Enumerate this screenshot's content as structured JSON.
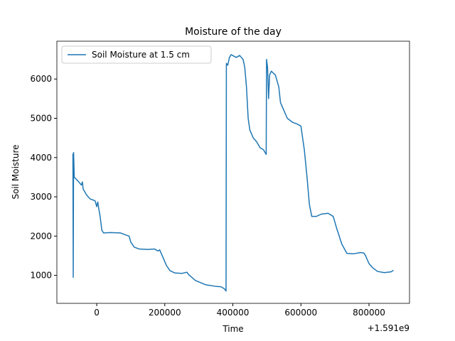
{
  "chart_data": {
    "type": "line",
    "title": "Moisture of the day",
    "x_label": "Time",
    "y_label": "Soil Moisture",
    "x_offset_label": "+1.591e9",
    "x": [
      -70000,
      -69000,
      -68000,
      -66000,
      -55000,
      -45000,
      -42000,
      -40000,
      -30000,
      -20000,
      -5000,
      0,
      3000,
      6000,
      10000,
      15000,
      20000,
      40000,
      70000,
      85000,
      95000,
      100000,
      110000,
      125000,
      150000,
      170000,
      180000,
      185000,
      195000,
      205000,
      215000,
      230000,
      250000,
      265000,
      270000,
      290000,
      320000,
      350000,
      365000,
      375000,
      380000,
      381000,
      385000,
      390000,
      395000,
      410000,
      420000,
      430000,
      435000,
      440000,
      445000,
      450000,
      460000,
      470000,
      480000,
      490000,
      498000,
      499000,
      502000,
      505000,
      508000,
      513000,
      525000,
      535000,
      540000,
      550000,
      560000,
      575000,
      590000,
      600000,
      610000,
      618000,
      625000,
      632000,
      645000,
      660000,
      680000,
      695000,
      705000,
      720000,
      735000,
      755000,
      775000,
      785000,
      790000,
      800000,
      810000,
      825000,
      845000,
      865000,
      872000
    ],
    "series": [
      {
        "name": "Soil Moisture at 1.5 cm",
        "color": "#1f77b4",
        "values": [
          4100,
          950,
          4130,
          3500,
          3400,
          3300,
          3380,
          3200,
          3050,
          2950,
          2900,
          2750,
          2870,
          2700,
          2500,
          2150,
          2080,
          2090,
          2080,
          2030,
          2000,
          1850,
          1720,
          1670,
          1660,
          1670,
          1620,
          1650,
          1450,
          1250,
          1120,
          1060,
          1050,
          1080,
          1020,
          870,
          760,
          720,
          710,
          660,
          600,
          6400,
          6350,
          6550,
          6620,
          6550,
          6600,
          6500,
          6300,
          5800,
          5000,
          4700,
          4500,
          4400,
          4250,
          4200,
          4080,
          6500,
          6300,
          5500,
          6100,
          6200,
          6100,
          5800,
          5400,
          5200,
          5000,
          4900,
          4850,
          4800,
          4200,
          3500,
          2800,
          2500,
          2500,
          2560,
          2580,
          2500,
          2200,
          1800,
          1560,
          1550,
          1580,
          1570,
          1500,
          1300,
          1200,
          1100,
          1070,
          1090,
          1130
        ]
      }
    ],
    "xlim": [
      -117100,
      919100
    ],
    "xticks": [
      0,
      200000,
      400000,
      600000,
      800000
    ],
    "ylim": [
      287,
      6963
    ],
    "yticks": [
      1000,
      2000,
      3000,
      4000,
      5000,
      6000
    ],
    "legend": "upper left",
    "grid": false
  }
}
